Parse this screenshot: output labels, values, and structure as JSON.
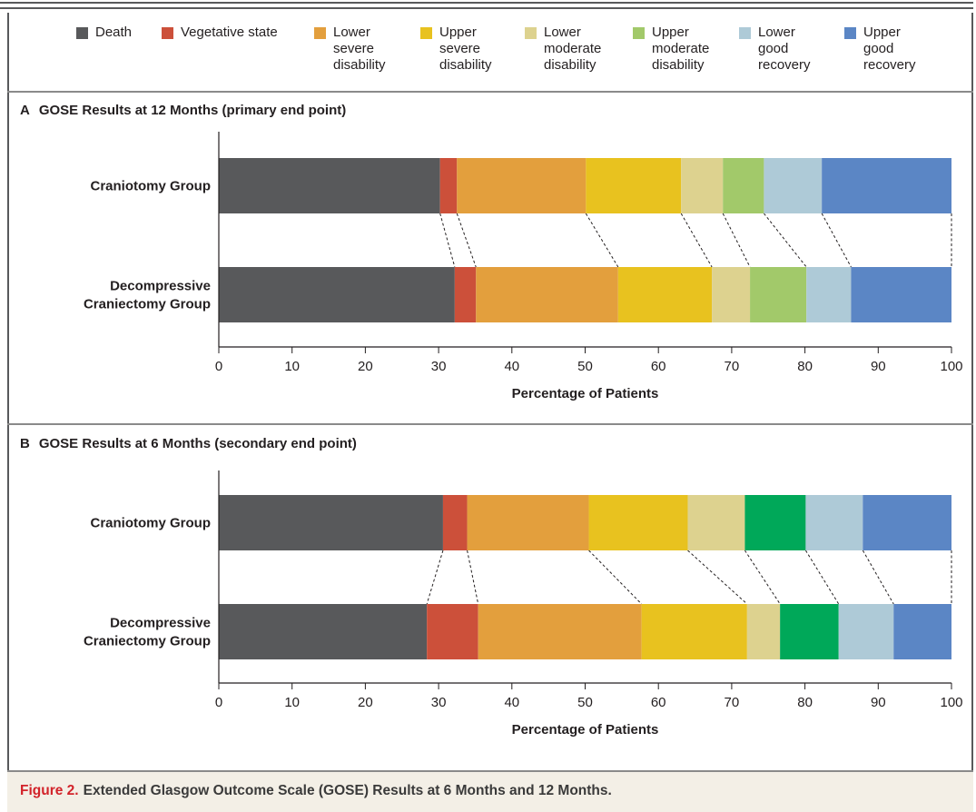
{
  "colors": {
    "Death": "#58595b",
    "Vegetative state": "#cc503a",
    "Lower severe disability": "#e39f3d",
    "Upper severe disability": "#e8c21f",
    "Lower moderate disability": "#ddd28f",
    "Upper moderate disability (12 months)": "#a2c96a",
    "Upper moderate disability (6 months)": "#00a859",
    "Lower good recovery": "#aecad7",
    "Upper good recovery": "#5b86c5"
  },
  "legend": [
    {
      "label": "Death",
      "color": "#58595b"
    },
    {
      "label": "Vegetative state",
      "color": "#cc503a"
    },
    {
      "label": "Lower\nsevere\ndisability",
      "color": "#e39f3d"
    },
    {
      "label": "Upper\nsevere\ndisability",
      "color": "#e8c21f"
    },
    {
      "label": "Lower\nmoderate\ndisability",
      "color": "#ddd28f"
    },
    {
      "label": "Upper\nmoderate\ndisability",
      "color": "#a2c96a"
    },
    {
      "label": "Lower\ngood\nrecovery",
      "color": "#aecad7"
    },
    {
      "label": "Upper\ngood\nrecovery",
      "color": "#5b86c5"
    }
  ],
  "chart_data": [
    {
      "type": "bar",
      "orientation": "horizontal",
      "stacked": true,
      "panel_letter": "A",
      "title": "GOSE Results at 12 Months (primary end point)",
      "xlabel": "Percentage of Patients",
      "xlim": [
        0,
        100
      ],
      "xticks": [
        0,
        10,
        20,
        30,
        40,
        50,
        60,
        70,
        80,
        90,
        100
      ],
      "categories": [
        "Craniotomy Group",
        "Decompressive Craniectomy Group"
      ],
      "series": [
        {
          "name": "Death",
          "color": "#58595b",
          "values": [
            30.2,
            32.2
          ]
        },
        {
          "name": "Vegetative state",
          "color": "#cc503a",
          "values": [
            2.3,
            2.9
          ]
        },
        {
          "name": "Lower severe disability",
          "color": "#e39f3d",
          "values": [
            17.6,
            19.4
          ]
        },
        {
          "name": "Upper severe disability",
          "color": "#e8c21f",
          "values": [
            13.0,
            12.8
          ]
        },
        {
          "name": "Lower moderate disability",
          "color": "#ddd28f",
          "values": [
            5.7,
            5.2
          ]
        },
        {
          "name": "Upper moderate disability",
          "color": "#a2c96a",
          "values": [
            5.6,
            7.7
          ]
        },
        {
          "name": "Lower good recovery",
          "color": "#aecad7",
          "values": [
            7.9,
            6.1
          ]
        },
        {
          "name": "Upper good recovery",
          "color": "#5b86c5",
          "values": [
            17.7,
            13.7
          ]
        }
      ]
    },
    {
      "type": "bar",
      "orientation": "horizontal",
      "stacked": true,
      "panel_letter": "B",
      "title": "GOSE Results at 6 Months (secondary end point)",
      "xlabel": "Percentage of Patients",
      "xlim": [
        0,
        100
      ],
      "xticks": [
        0,
        10,
        20,
        30,
        40,
        50,
        60,
        70,
        80,
        90,
        100
      ],
      "categories": [
        "Craniotomy Group",
        "Decompressive Craniectomy Group"
      ],
      "series": [
        {
          "name": "Death",
          "color": "#58595b",
          "values": [
            30.6,
            28.4
          ]
        },
        {
          "name": "Vegetative state",
          "color": "#cc503a",
          "values": [
            3.3,
            7.0
          ]
        },
        {
          "name": "Lower severe disability",
          "color": "#e39f3d",
          "values": [
            16.6,
            22.3
          ]
        },
        {
          "name": "Upper severe disability",
          "color": "#e8c21f",
          "values": [
            13.5,
            14.4
          ]
        },
        {
          "name": "Lower moderate disability",
          "color": "#ddd28f",
          "values": [
            7.8,
            4.5
          ]
        },
        {
          "name": "Upper moderate disability",
          "color": "#00a859",
          "values": [
            8.3,
            8.0
          ]
        },
        {
          "name": "Lower good recovery",
          "color": "#aecad7",
          "values": [
            7.8,
            7.5
          ]
        },
        {
          "name": "Upper good recovery",
          "color": "#5b86c5",
          "values": [
            12.1,
            7.9
          ]
        }
      ]
    }
  ],
  "caption": {
    "label": "Figure 2.",
    "text": "Extended Glasgow Outcome Scale (GOSE) Results at 6 Months and 12 Months."
  }
}
